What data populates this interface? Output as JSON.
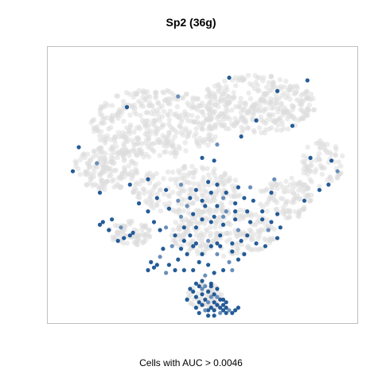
{
  "chart_data": {
    "type": "scatter",
    "title": "Sp2 (36g)",
    "xlabel": "Cells with AUC > 0.0046",
    "ylabel": "",
    "axes_visible": false,
    "xlim": [
      0,
      100
    ],
    "ylim": [
      0,
      100
    ],
    "colors": {
      "background_cells": "#dcdcdc",
      "high_auc": "#0d4a8c",
      "mid_auc": "#5b83b3",
      "frame": "#c0c0c0"
    },
    "series": [
      {
        "role": "background",
        "regions": [
          {
            "cx": 35,
            "cy": 73,
            "rx": 22,
            "ry": 13,
            "n": 380
          },
          {
            "cx": 68,
            "cy": 80,
            "rx": 20,
            "ry": 11,
            "n": 330
          },
          {
            "cx": 18,
            "cy": 56,
            "rx": 11,
            "ry": 8,
            "n": 150
          },
          {
            "cx": 90,
            "cy": 58,
            "rx": 7,
            "ry": 9,
            "n": 70
          },
          {
            "cx": 78,
            "cy": 45,
            "rx": 9,
            "ry": 8,
            "n": 100
          },
          {
            "cx": 45,
            "cy": 48,
            "rx": 18,
            "ry": 9,
            "n": 200
          },
          {
            "cx": 26,
            "cy": 32,
            "rx": 7,
            "ry": 5,
            "n": 70
          },
          {
            "cx": 57,
            "cy": 32,
            "rx": 18,
            "ry": 9,
            "n": 220
          },
          {
            "cx": 51,
            "cy": 8,
            "rx": 6,
            "ry": 5,
            "n": 60
          }
        ]
      },
      {
        "role": "cells_above_threshold",
        "points": [
          [
            59,
            90
          ],
          [
            75,
            85
          ],
          [
            85,
            89
          ],
          [
            42,
            83
          ],
          [
            25,
            79
          ],
          [
            68,
            74
          ],
          [
            80,
            72
          ],
          [
            63,
            68
          ],
          [
            55,
            65
          ],
          [
            50,
            60
          ],
          [
            54,
            59
          ],
          [
            9,
            64
          ],
          [
            7,
            55
          ],
          [
            15,
            58
          ],
          [
            26,
            50
          ],
          [
            32,
            52
          ],
          [
            38,
            48
          ],
          [
            16,
            47
          ],
          [
            95,
            55
          ],
          [
            93,
            59
          ],
          [
            86,
            60
          ],
          [
            89,
            48
          ],
          [
            92,
            50
          ],
          [
            74,
            52
          ],
          [
            84,
            44
          ],
          [
            73,
            47
          ],
          [
            29,
            43
          ],
          [
            32,
            40
          ],
          [
            38,
            34
          ],
          [
            19,
            33
          ],
          [
            24,
            30
          ],
          [
            20,
            37
          ],
          [
            17,
            36
          ],
          [
            23,
            34
          ],
          [
            27,
            32
          ],
          [
            26,
            31
          ],
          [
            22,
            29
          ],
          [
            16,
            35
          ],
          [
            45,
            42
          ],
          [
            47,
            39
          ],
          [
            50,
            37
          ],
          [
            48,
            34
          ],
          [
            46,
            31
          ],
          [
            43,
            38
          ],
          [
            44,
            34
          ],
          [
            41,
            31
          ],
          [
            53,
            36
          ],
          [
            57,
            35
          ],
          [
            62,
            33
          ],
          [
            61,
            37
          ],
          [
            65,
            31
          ],
          [
            68,
            28
          ],
          [
            66,
            36
          ],
          [
            58,
            40
          ],
          [
            55,
            42
          ],
          [
            51,
            42
          ],
          [
            50,
            44
          ],
          [
            53,
            47
          ],
          [
            57,
            45
          ],
          [
            61,
            43
          ],
          [
            67,
            44
          ],
          [
            65,
            40
          ],
          [
            70,
            37
          ],
          [
            72,
            33
          ],
          [
            75,
            30
          ],
          [
            71,
            27
          ],
          [
            64,
            24
          ],
          [
            60,
            25
          ],
          [
            55,
            24
          ],
          [
            53,
            27
          ],
          [
            50,
            24
          ],
          [
            47,
            27
          ],
          [
            44,
            29
          ],
          [
            40,
            27
          ],
          [
            42,
            22
          ],
          [
            39,
            20
          ],
          [
            37,
            26
          ],
          [
            34,
            19
          ],
          [
            38,
            17
          ],
          [
            33,
            21
          ],
          [
            60,
            28
          ],
          [
            63,
            29
          ],
          [
            56,
            31
          ],
          [
            59,
            21
          ],
          [
            62,
            22
          ],
          [
            70,
            40
          ],
          [
            48,
            28
          ],
          [
            49,
            21
          ],
          [
            52,
            29
          ],
          [
            55,
            28
          ],
          [
            45,
            24
          ],
          [
            43,
            26
          ],
          [
            41,
            18
          ],
          [
            36,
            23
          ],
          [
            32,
            18
          ],
          [
            35,
            20
          ],
          [
            46,
            45
          ],
          [
            48,
            48
          ],
          [
            43,
            50
          ],
          [
            52,
            51
          ],
          [
            55,
            50
          ],
          [
            58,
            47
          ],
          [
            54,
            38
          ],
          [
            57,
            38
          ],
          [
            61,
            40
          ],
          [
            64,
            45
          ],
          [
            56,
            27
          ],
          [
            52,
            20
          ],
          [
            60,
            18
          ],
          [
            73,
            36
          ],
          [
            75,
            39
          ],
          [
            76,
            34
          ],
          [
            39,
            41
          ],
          [
            42,
            44
          ],
          [
            34,
            36
          ],
          [
            36,
            33
          ],
          [
            44,
            18
          ],
          [
            47,
            18
          ],
          [
            51,
            16
          ],
          [
            54,
            17
          ],
          [
            57,
            18
          ],
          [
            35,
            45
          ],
          [
            62,
            49
          ],
          [
            66,
            49
          ],
          [
            49,
            12
          ],
          [
            50,
            9
          ],
          [
            51,
            7
          ],
          [
            52,
            10
          ],
          [
            53,
            8
          ],
          [
            54,
            6
          ],
          [
            55,
            5
          ],
          [
            56,
            7
          ],
          [
            54,
            9
          ],
          [
            52,
            6
          ],
          [
            50,
            5
          ],
          [
            48,
            8
          ],
          [
            49,
            6
          ],
          [
            53,
            4
          ],
          [
            55,
            8
          ],
          [
            57,
            5
          ],
          [
            58,
            4
          ],
          [
            47,
            10
          ],
          [
            48,
            13
          ],
          [
            51,
            12
          ],
          [
            53,
            12
          ],
          [
            50,
            14
          ],
          [
            46,
            11
          ],
          [
            56,
            4
          ],
          [
            59,
            3
          ],
          [
            57,
            3
          ],
          [
            54,
            3
          ],
          [
            52,
            3
          ],
          [
            55,
            11
          ],
          [
            51,
            3
          ],
          [
            45,
            7
          ],
          [
            57,
            7
          ],
          [
            58,
            6
          ],
          [
            53,
            13
          ],
          [
            50,
            11
          ],
          [
            48,
            4
          ],
          [
            49,
            2
          ],
          [
            52,
            1
          ],
          [
            54,
            1
          ],
          [
            56,
            2
          ],
          [
            58,
            2
          ],
          [
            60,
            2
          ],
          [
            61,
            3
          ],
          [
            62,
            4
          ]
        ]
      }
    ]
  }
}
